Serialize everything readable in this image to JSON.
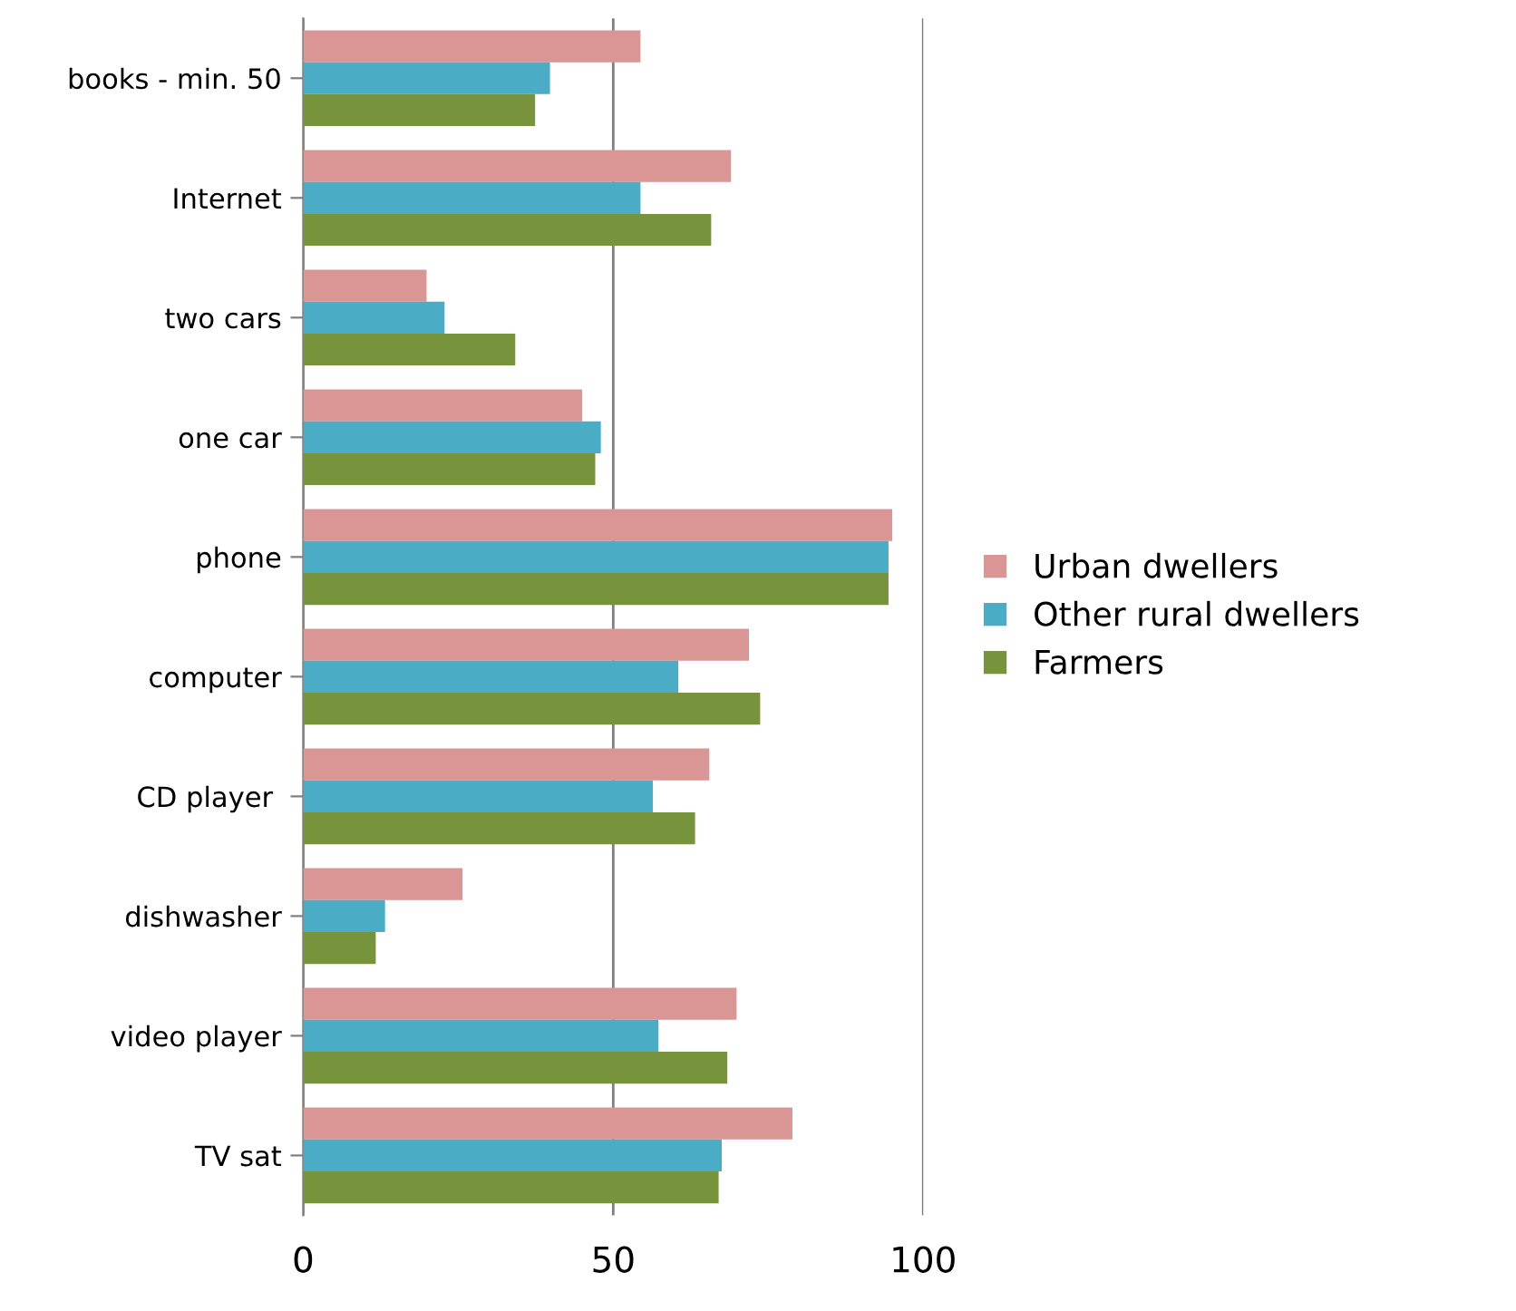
{
  "chart_data": {
    "type": "bar",
    "orientation": "horizontal",
    "categories": [
      "books - min. 50",
      "Internet",
      "two cars",
      "one car",
      "phone",
      "computer",
      "CD player ",
      "dishwasher",
      "video player",
      "TV sat"
    ],
    "series": [
      {
        "name": "Urban dwellers",
        "color": "#d99694",
        "values": [
          54.4,
          69,
          19.9,
          45,
          95,
          71.9,
          65.5,
          25.7,
          69.9,
          78.9
        ]
      },
      {
        "name": "Other rural dwellers",
        "color": "#4bacc6",
        "values": [
          39.8,
          54.4,
          22.8,
          48,
          94.4,
          60.5,
          56.4,
          13.2,
          57.3,
          67.5
        ]
      },
      {
        "name": "Farmers",
        "color": "#77933c",
        "values": [
          37.4,
          65.8,
          34.2,
          47.1,
          94.4,
          73.7,
          63.2,
          11.7,
          68.4,
          67
        ]
      }
    ],
    "xlim": [
      0,
      100
    ],
    "xticks": [
      0,
      50,
      100
    ],
    "grid": "x",
    "legend": "right"
  }
}
